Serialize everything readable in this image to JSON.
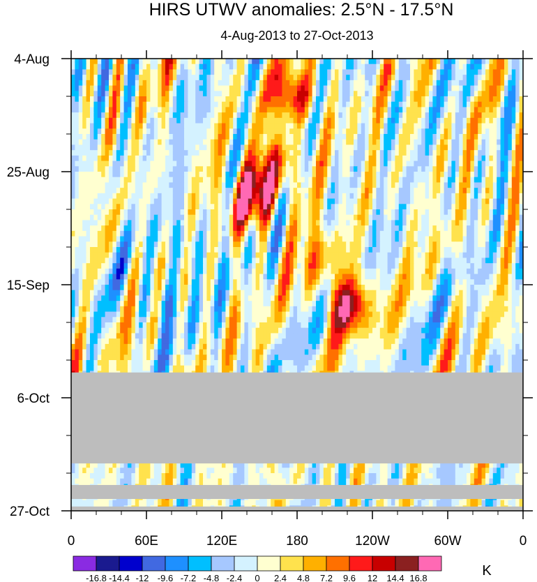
{
  "chart_data": {
    "type": "heatmap",
    "title": "HIRS UTWV anomalies: 2.5°N - 17.5°N",
    "subtitle": "4-Aug-2013 to 27-Oct-2013",
    "x_ticks": [
      {
        "label": "0",
        "lon": 0
      },
      {
        "label": "60E",
        "lon": 60
      },
      {
        "label": "120E",
        "lon": 120
      },
      {
        "label": "180",
        "lon": 180
      },
      {
        "label": "120W",
        "lon": 240
      },
      {
        "label": "60W",
        "lon": 300
      },
      {
        "label": "0",
        "lon": 360
      }
    ],
    "x_range": [
      0,
      360
    ],
    "y_ticks": [
      {
        "label": "4-Aug",
        "day": 0
      },
      {
        "label": "25-Aug",
        "day": 21
      },
      {
        "label": "15-Sep",
        "day": 42
      },
      {
        "label": "6-Oct",
        "day": 63
      },
      {
        "label": "27-Oct",
        "day": 84
      }
    ],
    "y_range": [
      0,
      84
    ],
    "missing_bands_days": [
      [
        58.3,
        75.2
      ],
      [
        79.2,
        81.8
      ],
      [
        83.2,
        84
      ]
    ],
    "colorbar": {
      "unit": "K",
      "labels": [
        "-16.8",
        "-14.4",
        "-12",
        "-9.6",
        "-7.2",
        "-4.8",
        "-2.4",
        "0",
        "2.4",
        "4.8",
        "7.2",
        "9.6",
        "12",
        "14.4",
        "16.8"
      ],
      "colors": [
        "#8a2be2",
        "#1a1a8f",
        "#0000cd",
        "#4169e1",
        "#1e90ff",
        "#00bfff",
        "#a6c8ff",
        "#d4f2ff",
        "#ffffd0",
        "#ffe24d",
        "#ffb000",
        "#ff7000",
        "#ff1a1a",
        "#c80000",
        "#8b2020",
        "#ff69b4"
      ]
    },
    "features": [
      {
        "name": "positive anomaly near 150E late Aug",
        "lon": 150,
        "day": 24,
        "value": 12
      },
      {
        "name": "positive anomaly near 140W mid Sep",
        "lon": 220,
        "day": 46,
        "value": 14.4
      },
      {
        "name": "positive anomaly near 175E early Aug",
        "lon": 178,
        "day": 7,
        "value": 12
      }
    ]
  }
}
